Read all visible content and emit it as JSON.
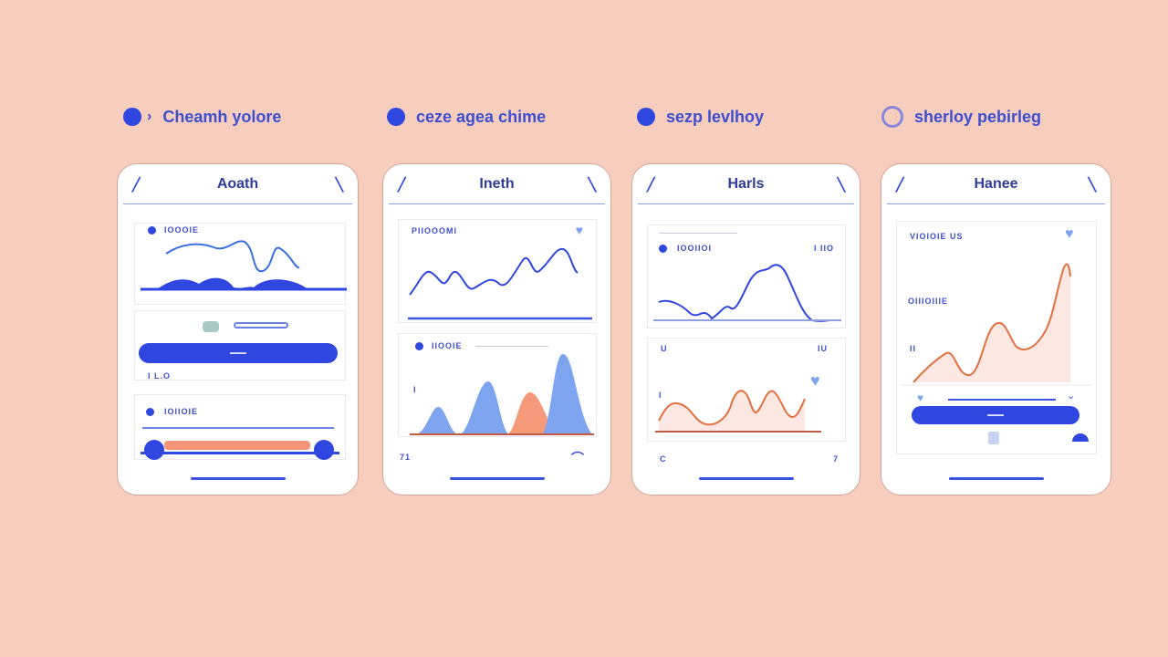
{
  "legend": [
    {
      "label": "Cheamh yolore",
      "marker": "dot",
      "prefix": "›"
    },
    {
      "label": "ceze agea chime",
      "marker": "dot"
    },
    {
      "label": "sezp levlhoy",
      "marker": "dot"
    },
    {
      "label": "sherloy pebirleg",
      "marker": "ring"
    }
  ],
  "cards": [
    {
      "title": "Aoath",
      "panel1_label": "IOOOIE",
      "panel2_footer": "I  L.O",
      "panel3_label": "IOIIOIE",
      "button_label": "▬▬▬"
    },
    {
      "title": "Ineth",
      "panel1_label": "PIIOOOMI",
      "panel2_label": "IIOOIE",
      "axis_label_left": "I",
      "footer_left": "71",
      "footer_right": "⌒"
    },
    {
      "title": "Harls",
      "panel1_label": "IOOIIOI",
      "panel1_value": "I IIO",
      "panel2_left": "U",
      "panel2_right": "IU",
      "axis_label_left": "I",
      "footer_left": "C",
      "footer_right": "7"
    },
    {
      "title": "Hanee",
      "panel_label_1": "VIOIOIE US",
      "panel_label_2": "OIIIOIIIE",
      "axis_label_left": "II",
      "button_label": "▬▬▬"
    }
  ],
  "colors": {
    "background": "#f7cdbd",
    "primary_blue": "#2f47e0",
    "light_blue": "#7ea4f0",
    "orange": "#e07040",
    "orange_fill": "#f49a7a"
  },
  "icons": [
    "back-icon",
    "menu-icon",
    "heart-icon",
    "slider-knob-icon"
  ]
}
